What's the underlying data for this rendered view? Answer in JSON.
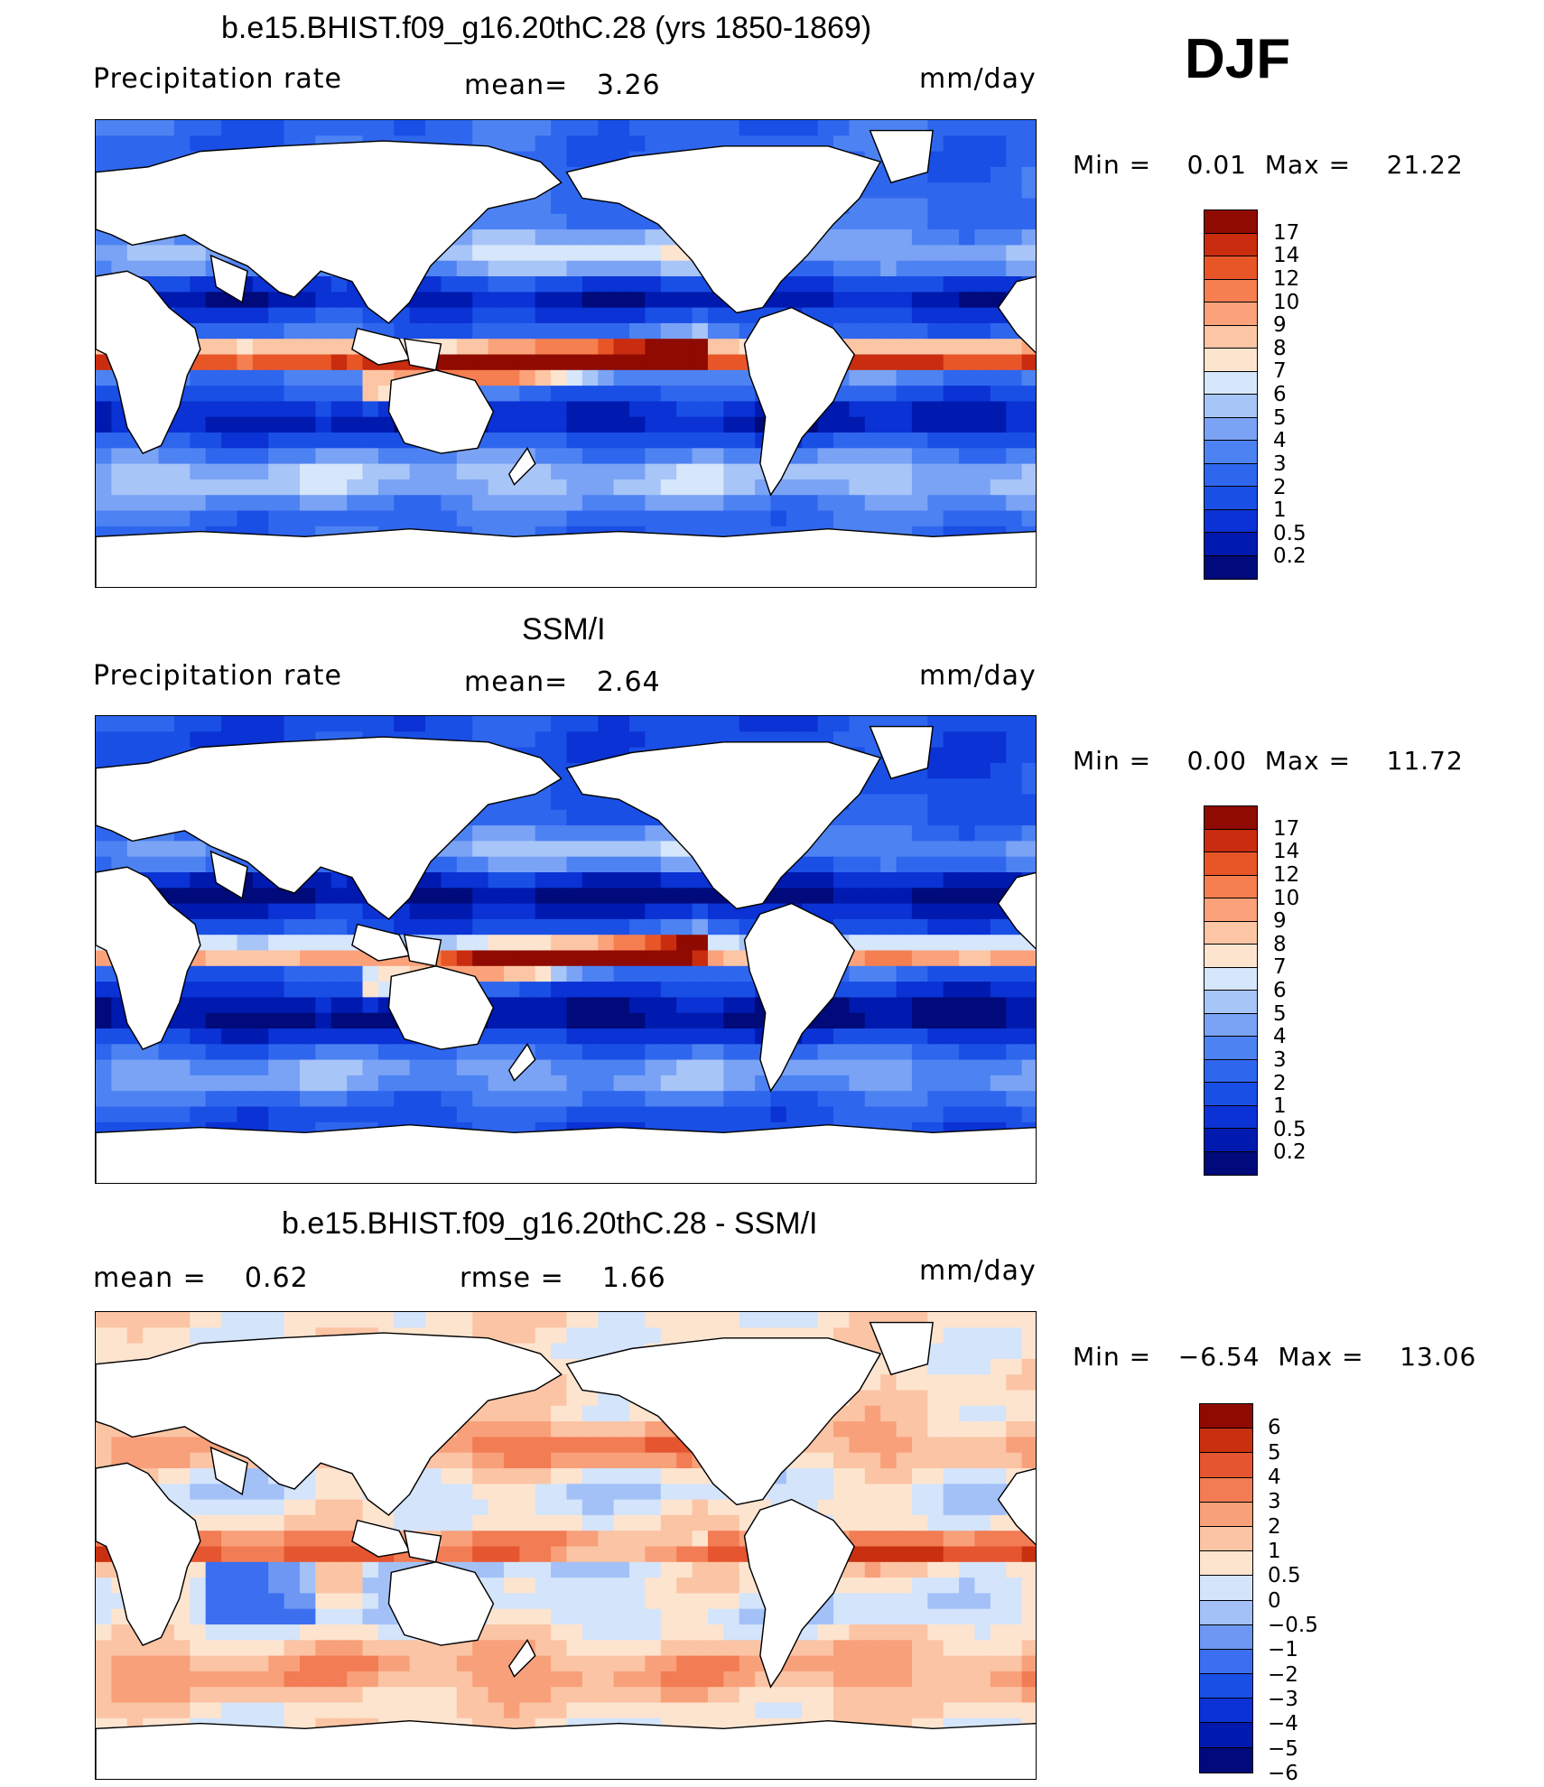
{
  "season": "DJF",
  "panels": [
    {
      "id": "model",
      "title": "b.e15.BHIST.f09_g16.20thC.28 (yrs 1850-1869)",
      "left_label": "Precipitation rate",
      "center_label": "mean=   3.26",
      "units": "mm/day",
      "minmax": "Min =    0.01  Max =    21.22",
      "field": "model",
      "legend_labels": [
        "17",
        "14",
        "12",
        "10",
        "9",
        "8",
        "7",
        "6",
        "5",
        "4",
        "3",
        "2",
        "1",
        "0.5",
        "0.2"
      ]
    },
    {
      "id": "obs",
      "title": "SSM/I",
      "left_label": "Precipitation rate",
      "center_label": "mean=   2.64",
      "units": "mm/day",
      "minmax": "Min =    0.00  Max =    11.72",
      "field": "obs",
      "legend_labels": [
        "17",
        "14",
        "12",
        "10",
        "9",
        "8",
        "7",
        "6",
        "5",
        "4",
        "3",
        "2",
        "1",
        "0.5",
        "0.2"
      ]
    },
    {
      "id": "diff",
      "title": "b.e15.BHIST.f09_g16.20thC.28 - SSM/I",
      "left_label": "mean =    0.62",
      "center_label": "rmse =    1.66",
      "units": "mm/day",
      "minmax": "Min =   −6.54  Max =    13.06",
      "field": "diff",
      "legend_labels": [
        "6",
        "5",
        "4",
        "3",
        "2",
        "1",
        "0.5",
        "0",
        "−0.5",
        "−1",
        "−2",
        "−3",
        "−4",
        "−5",
        "−6"
      ]
    }
  ],
  "colors": {
    "precip_scale": [
      "#000a7a",
      "#001ab0",
      "#0a32d4",
      "#1a4fe6",
      "#2f66ee",
      "#4d82f2",
      "#7aa3f5",
      "#a8c5f8",
      "#d6e6fb",
      "#fde4cf",
      "#fcc6a5",
      "#fba27a",
      "#f57f50",
      "#e85628",
      "#c92c0f",
      "#8f0a00"
    ],
    "diff_scale": [
      "#000a7a",
      "#001ab0",
      "#0a32d4",
      "#1a4fe6",
      "#3b6ff0",
      "#6d97f3",
      "#a3c1f7",
      "#d3e4fb",
      "#fde4cf",
      "#fbc4a4",
      "#f8a07a",
      "#f27c54",
      "#e55630",
      "#c93010",
      "#8f0a00"
    ]
  }
}
